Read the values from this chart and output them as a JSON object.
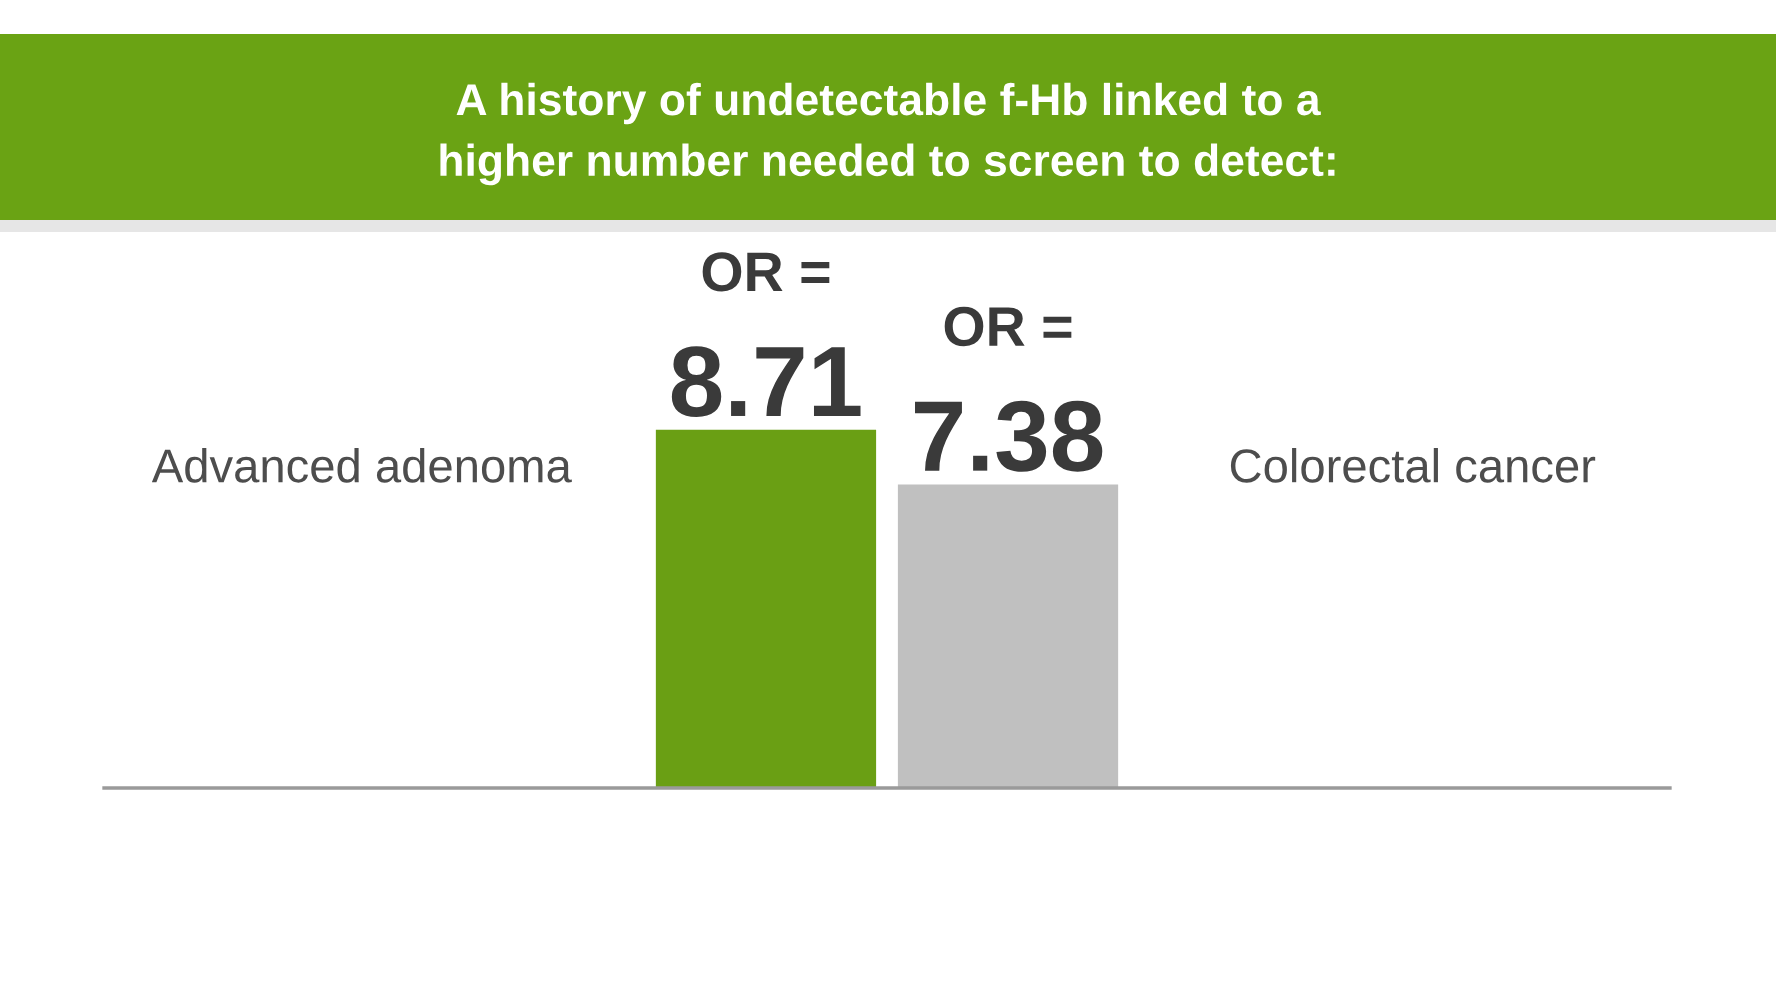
{
  "chart_data": {
    "type": "bar",
    "title": "A history of undetectable f-Hb linked to a\nhigher number needed to screen to detect:",
    "categories": [
      "Advanced adenoma",
      "Colorectal cancer"
    ],
    "values": [
      8.71,
      7.38
    ],
    "colors": [
      "#6a9f14",
      "#c0c0c0"
    ],
    "value_labels": [
      "OR =\n8.71",
      "OR =\n7.38"
    ]
  }
}
